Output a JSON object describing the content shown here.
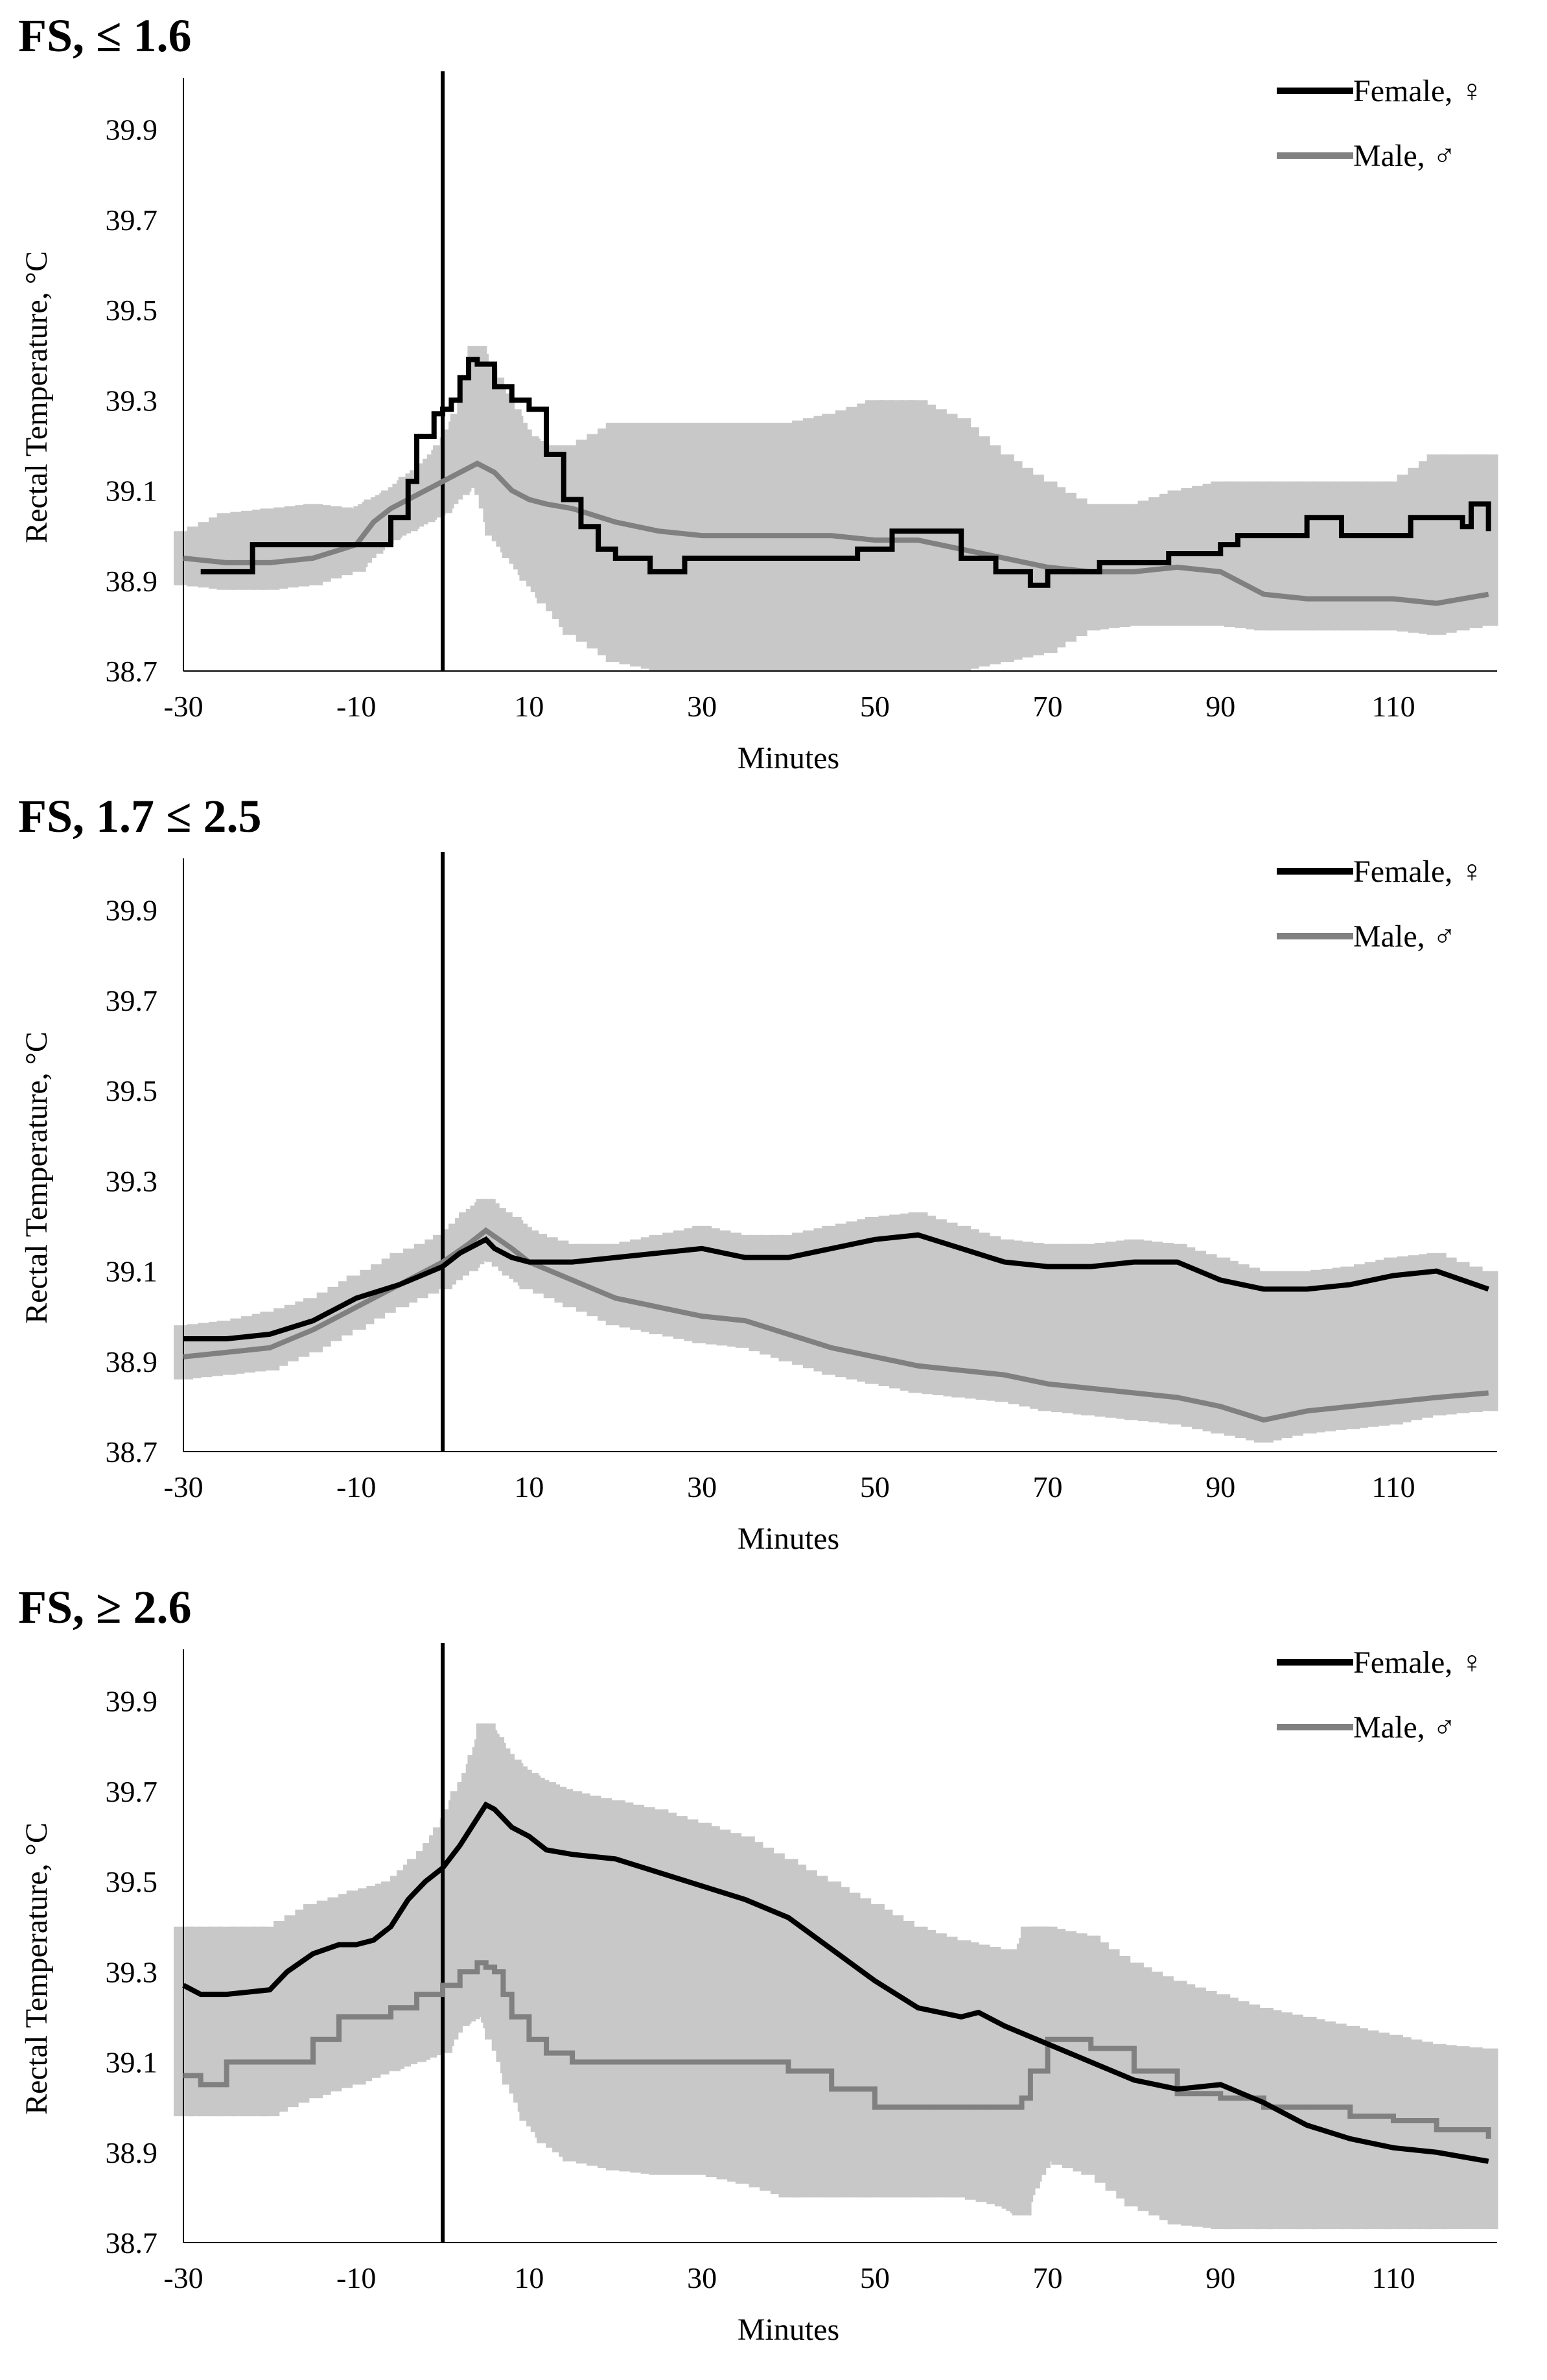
{
  "chart_data": [
    {
      "type": "line",
      "title": "FS, ≤ 1.6",
      "xlabel": "Minutes",
      "ylabel": "Rectal  Temperature,  °C",
      "xlim": [
        -30,
        122
      ],
      "ylim": [
        38.7,
        40.0
      ],
      "x_ticks": [
        "-30",
        "-10",
        "10",
        "30",
        "50",
        "70",
        "90",
        "110"
      ],
      "y_ticks": [
        "38.7",
        "38.9",
        "39.1",
        "39.3",
        "39.5",
        "39.7",
        "39.9"
      ],
      "marker_line_x": 0,
      "legend_position": "top-right",
      "series": [
        {
          "name": "Female, ♀",
          "color": "#000000",
          "width": 8,
          "step": true,
          "x": [
            -28,
            -24,
            -22,
            -18,
            -12,
            -8,
            -6,
            -4,
            -3,
            -2,
            -1,
            0,
            1,
            2,
            3,
            4,
            6,
            8,
            10,
            12,
            14,
            16,
            18,
            20,
            24,
            28,
            32,
            36,
            40,
            44,
            48,
            52,
            56,
            60,
            64,
            68,
            70,
            76,
            80,
            84,
            88,
            90,
            92,
            96,
            100,
            104,
            108,
            112,
            116,
            118,
            119,
            120,
            121
          ],
          "y": [
            38.92,
            38.92,
            38.98,
            38.98,
            38.98,
            38.98,
            39.04,
            39.12,
            39.22,
            39.22,
            39.27,
            39.28,
            39.3,
            39.35,
            39.39,
            39.38,
            39.33,
            39.3,
            39.28,
            39.18,
            39.08,
            39.02,
            38.97,
            38.95,
            38.92,
            38.95,
            38.95,
            38.95,
            38.95,
            38.95,
            38.97,
            39.01,
            39.01,
            38.95,
            38.92,
            38.89,
            38.92,
            38.94,
            38.94,
            38.96,
            38.96,
            38.98,
            39.0,
            39.0,
            39.04,
            39.0,
            39.0,
            39.04,
            39.04,
            39.02,
            39.07,
            39.07,
            39.01
          ]
        },
        {
          "name": "Male, ♂",
          "color": "#808080",
          "width": 8,
          "step": false,
          "x": [
            -30,
            -25,
            -20,
            -15,
            -10,
            -8,
            -6,
            -4,
            -2,
            0,
            2,
            4,
            6,
            8,
            10,
            12,
            15,
            20,
            25,
            30,
            35,
            40,
            45,
            50,
            55,
            60,
            65,
            70,
            75,
            80,
            85,
            90,
            95,
            100,
            105,
            110,
            115,
            121
          ],
          "y": [
            38.95,
            38.94,
            38.94,
            38.95,
            38.98,
            39.03,
            39.06,
            39.08,
            39.1,
            39.12,
            39.14,
            39.16,
            39.14,
            39.1,
            39.08,
            39.07,
            39.06,
            39.03,
            39.01,
            39.0,
            39.0,
            39.0,
            39.0,
            38.99,
            38.99,
            38.97,
            38.95,
            38.93,
            38.92,
            38.92,
            38.93,
            38.92,
            38.87,
            38.86,
            38.86,
            38.86,
            38.85,
            38.87
          ]
        }
      ],
      "error_bars": {
        "x": [
          -30,
          -25,
          -20,
          -15,
          -10,
          -8,
          -6,
          -4,
          -2,
          0,
          2,
          4,
          6,
          8,
          10,
          12,
          15,
          20,
          25,
          30,
          35,
          40,
          45,
          50,
          55,
          60,
          65,
          70,
          75,
          80,
          85,
          90,
          95,
          100,
          105,
          110,
          115,
          121
        ],
        "low": [
          38.89,
          38.88,
          38.88,
          38.89,
          38.92,
          38.96,
          38.99,
          39.01,
          39.03,
          39.05,
          39.09,
          39.12,
          39.0,
          38.95,
          38.9,
          38.85,
          38.78,
          38.72,
          38.7,
          38.7,
          38.7,
          38.7,
          38.7,
          38.7,
          38.7,
          38.7,
          38.72,
          38.74,
          38.79,
          38.8,
          38.8,
          38.8,
          38.79,
          38.79,
          38.79,
          38.79,
          38.78,
          38.8
        ],
        "high": [
          39.01,
          39.05,
          39.06,
          39.07,
          39.06,
          39.08,
          39.1,
          39.13,
          39.16,
          39.2,
          39.27,
          39.42,
          39.35,
          39.28,
          39.22,
          39.2,
          39.2,
          39.25,
          39.25,
          39.25,
          39.25,
          39.25,
          39.27,
          39.3,
          39.3,
          39.26,
          39.18,
          39.12,
          39.07,
          39.07,
          39.1,
          39.12,
          39.12,
          39.12,
          39.12,
          39.12,
          39.18,
          39.18
        ]
      }
    },
    {
      "type": "line",
      "title": "FS, 1.7 ≤ 2.5",
      "xlabel": "Minutes",
      "ylabel": "Rectal  Temperature,  °C",
      "xlim": [
        -30,
        122
      ],
      "ylim": [
        38.7,
        40.0
      ],
      "x_ticks": [
        "-30",
        "-10",
        "10",
        "30",
        "50",
        "70",
        "90",
        "110"
      ],
      "y_ticks": [
        "38.7",
        "38.9",
        "39.1",
        "39.3",
        "39.5",
        "39.7",
        "39.9"
      ],
      "marker_line_x": 0,
      "legend_position": "top-right",
      "series": [
        {
          "name": "Female, ♀",
          "color": "#000000",
          "width": 8,
          "step": false,
          "x": [
            -30,
            -25,
            -20,
            -15,
            -10,
            -5,
            0,
            2,
            4,
            5,
            6,
            8,
            10,
            15,
            20,
            25,
            30,
            35,
            40,
            45,
            50,
            55,
            60,
            65,
            70,
            75,
            80,
            85,
            90,
            95,
            100,
            105,
            110,
            115,
            121
          ],
          "y": [
            38.95,
            38.95,
            38.96,
            38.99,
            39.04,
            39.07,
            39.11,
            39.14,
            39.16,
            39.17,
            39.15,
            39.13,
            39.12,
            39.12,
            39.13,
            39.14,
            39.15,
            39.13,
            39.13,
            39.15,
            39.17,
            39.18,
            39.15,
            39.12,
            39.11,
            39.11,
            39.12,
            39.12,
            39.08,
            39.06,
            39.06,
            39.07,
            39.09,
            39.1,
            39.06
          ]
        },
        {
          "name": "Male, ♂",
          "color": "#808080",
          "width": 8,
          "step": false,
          "x": [
            -30,
            -25,
            -20,
            -15,
            -10,
            -5,
            0,
            3,
            5,
            8,
            10,
            15,
            20,
            25,
            30,
            35,
            40,
            45,
            50,
            55,
            60,
            65,
            70,
            75,
            80,
            85,
            90,
            95,
            100,
            105,
            110,
            115,
            121
          ],
          "y": [
            38.91,
            38.92,
            38.93,
            38.97,
            39.02,
            39.07,
            39.12,
            39.16,
            39.19,
            39.15,
            39.12,
            39.08,
            39.04,
            39.02,
            39.0,
            38.99,
            38.96,
            38.93,
            38.91,
            38.89,
            38.88,
            38.87,
            38.85,
            38.84,
            38.83,
            38.82,
            38.8,
            38.77,
            38.79,
            38.8,
            38.81,
            38.82,
            38.83
          ]
        }
      ],
      "error_bars": {
        "x": [
          -30,
          -25,
          -20,
          -15,
          -10,
          -5,
          0,
          3,
          5,
          8,
          10,
          15,
          20,
          25,
          30,
          35,
          40,
          45,
          50,
          55,
          60,
          65,
          70,
          75,
          80,
          85,
          90,
          95,
          100,
          105,
          110,
          115,
          121
        ],
        "low": [
          38.86,
          38.87,
          38.88,
          38.92,
          38.97,
          39.02,
          39.06,
          39.1,
          39.13,
          39.09,
          39.06,
          39.02,
          38.98,
          38.96,
          38.94,
          38.93,
          38.9,
          38.87,
          38.85,
          38.83,
          38.82,
          38.81,
          38.79,
          38.78,
          38.77,
          38.76,
          38.74,
          38.72,
          38.74,
          38.75,
          38.76,
          38.78,
          38.79
        ],
        "high": [
          38.98,
          38.99,
          39.01,
          39.04,
          39.09,
          39.14,
          39.18,
          39.23,
          39.26,
          39.22,
          39.19,
          39.16,
          39.16,
          39.18,
          39.2,
          39.18,
          39.18,
          39.2,
          39.22,
          39.23,
          39.2,
          39.17,
          39.16,
          39.16,
          39.17,
          39.16,
          39.13,
          39.1,
          39.1,
          39.11,
          39.13,
          39.14,
          39.1
        ]
      }
    },
    {
      "type": "line",
      "title": "FS, ≥ 2.6",
      "xlabel": "Minutes",
      "ylabel": "Rectal  Temperature,  °C",
      "xlim": [
        -30,
        122
      ],
      "ylim": [
        38.7,
        40.0
      ],
      "x_ticks": [
        "-30",
        "-10",
        "10",
        "30",
        "50",
        "70",
        "90",
        "110"
      ],
      "y_ticks": [
        "38.7",
        "38.9",
        "39.1",
        "39.3",
        "39.5",
        "39.7",
        "39.9"
      ],
      "marker_line_x": 0,
      "legend_position": "top-right",
      "series": [
        {
          "name": "Female, ♀",
          "color": "#000000",
          "width": 8,
          "step": false,
          "x": [
            -30,
            -28,
            -25,
            -20,
            -18,
            -15,
            -12,
            -10,
            -8,
            -6,
            -4,
            -2,
            0,
            2,
            4,
            5,
            6,
            8,
            10,
            12,
            15,
            20,
            25,
            30,
            35,
            40,
            45,
            50,
            55,
            60,
            62,
            65,
            70,
            75,
            80,
            85,
            90,
            95,
            100,
            105,
            110,
            115,
            121
          ],
          "y": [
            39.27,
            39.25,
            39.25,
            39.26,
            39.3,
            39.34,
            39.36,
            39.36,
            39.37,
            39.4,
            39.46,
            39.5,
            39.53,
            39.58,
            39.64,
            39.67,
            39.66,
            39.62,
            39.6,
            39.57,
            39.56,
            39.55,
            39.52,
            39.49,
            39.46,
            39.42,
            39.35,
            39.28,
            39.22,
            39.2,
            39.21,
            39.18,
            39.14,
            39.1,
            39.06,
            39.04,
            39.05,
            39.01,
            38.96,
            38.93,
            38.91,
            38.9,
            38.88
          ]
        },
        {
          "name": "Male, ♂",
          "color": "#808080",
          "width": 8,
          "step": true,
          "x": [
            -30,
            -28,
            -25,
            -20,
            -15,
            -12,
            -10,
            -6,
            -3,
            0,
            2,
            4,
            5,
            6,
            7,
            8,
            10,
            12,
            15,
            20,
            25,
            30,
            35,
            40,
            45,
            50,
            55,
            60,
            65,
            67,
            68,
            70,
            75,
            80,
            85,
            90,
            95,
            100,
            105,
            110,
            115,
            121
          ],
          "y": [
            39.07,
            39.05,
            39.1,
            39.1,
            39.15,
            39.2,
            39.2,
            39.22,
            39.25,
            39.27,
            39.3,
            39.32,
            39.31,
            39.3,
            39.25,
            39.2,
            39.15,
            39.12,
            39.1,
            39.1,
            39.1,
            39.1,
            39.1,
            39.08,
            39.04,
            39.0,
            39.0,
            39.0,
            39.0,
            39.02,
            39.08,
            39.15,
            39.13,
            39.08,
            39.03,
            39.02,
            39.0,
            39.0,
            38.98,
            38.97,
            38.95,
            38.93
          ]
        }
      ],
      "error_bars": {
        "x": [
          -30,
          -25,
          -20,
          -15,
          -10,
          -6,
          -3,
          0,
          2,
          4,
          5,
          6,
          8,
          10,
          12,
          15,
          20,
          25,
          30,
          35,
          40,
          45,
          50,
          55,
          60,
          65,
          67,
          68,
          70,
          75,
          80,
          85,
          90,
          95,
          100,
          105,
          110,
          115,
          121
        ],
        "low": [
          38.98,
          38.98,
          38.98,
          39.02,
          39.05,
          39.08,
          39.1,
          39.12,
          39.18,
          39.2,
          39.2,
          39.15,
          39.05,
          38.97,
          38.92,
          38.88,
          38.86,
          38.85,
          38.85,
          38.83,
          38.8,
          38.8,
          38.8,
          38.8,
          38.8,
          38.78,
          38.76,
          38.82,
          38.88,
          38.85,
          38.78,
          38.74,
          38.73,
          38.73,
          38.73,
          38.73,
          38.73,
          38.73,
          38.73
        ],
        "high": [
          39.4,
          39.4,
          39.4,
          39.45,
          39.48,
          39.5,
          39.55,
          39.62,
          39.7,
          39.78,
          39.85,
          39.82,
          39.77,
          39.74,
          39.72,
          39.7,
          39.68,
          39.66,
          39.63,
          39.6,
          39.55,
          39.5,
          39.45,
          39.4,
          39.37,
          39.35,
          39.35,
          39.4,
          39.4,
          39.38,
          39.32,
          39.28,
          39.25,
          39.22,
          39.2,
          39.18,
          39.16,
          39.14,
          39.13
        ]
      }
    }
  ]
}
